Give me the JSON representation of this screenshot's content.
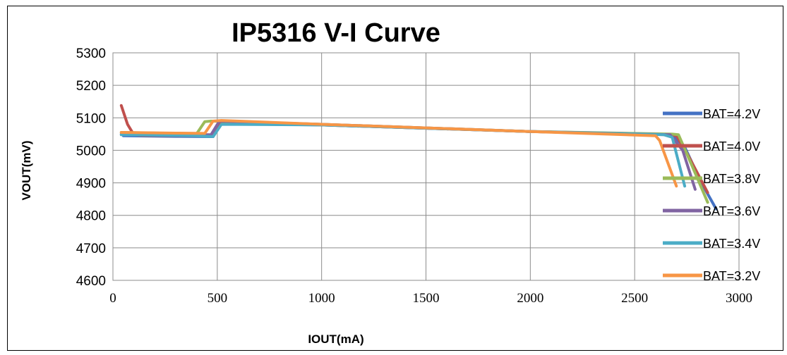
{
  "chart_data": {
    "type": "line",
    "title": "IP5316   V-I Curve",
    "xlabel": "IOUT(mA)",
    "ylabel": "VOUT(mV)",
    "xlim": [
      0,
      3000
    ],
    "ylim": [
      4600,
      5300
    ],
    "xticks": [
      0,
      500,
      1000,
      1500,
      2000,
      2500,
      3000
    ],
    "yticks": [
      4600,
      4700,
      4800,
      4900,
      5000,
      5100,
      5200,
      5300
    ],
    "grid": true,
    "legend_position": "right",
    "series": [
      {
        "name": "BAT=4.2V",
        "color": "#4472C4",
        "points": [
          [
            50,
            5045
          ],
          [
            300,
            5043
          ],
          [
            480,
            5042
          ],
          [
            520,
            5082
          ],
          [
            1000,
            5078
          ],
          [
            2000,
            5058
          ],
          [
            2600,
            5050
          ],
          [
            2680,
            5048
          ],
          [
            2740,
            5010
          ],
          [
            2820,
            4900
          ],
          [
            2890,
            4820
          ]
        ]
      },
      {
        "name": "BAT=4.0V",
        "color": "#C0504D",
        "points": [
          [
            40,
            5138
          ],
          [
            70,
            5080
          ],
          [
            100,
            5048
          ],
          [
            140,
            5046
          ],
          [
            400,
            5045
          ],
          [
            480,
            5046
          ],
          [
            520,
            5085
          ],
          [
            1000,
            5078
          ],
          [
            2000,
            5058
          ],
          [
            2650,
            5048
          ],
          [
            2700,
            5045
          ],
          [
            2760,
            4980
          ],
          [
            2850,
            4870
          ]
        ]
      },
      {
        "name": "BAT=3.8V",
        "color": "#9BBB59",
        "points": [
          [
            40,
            5055
          ],
          [
            300,
            5052
          ],
          [
            400,
            5050
          ],
          [
            440,
            5088
          ],
          [
            470,
            5090
          ],
          [
            1000,
            5080
          ],
          [
            2000,
            5058
          ],
          [
            2680,
            5050
          ],
          [
            2710,
            5048
          ],
          [
            2770,
            4960
          ],
          [
            2850,
            4840
          ]
        ]
      },
      {
        "name": "BAT=3.6V",
        "color": "#8064A2",
        "points": [
          [
            40,
            5050
          ],
          [
            300,
            5048
          ],
          [
            470,
            5048
          ],
          [
            510,
            5090
          ],
          [
            1000,
            5080
          ],
          [
            2000,
            5058
          ],
          [
            2670,
            5048
          ],
          [
            2730,
            5000
          ],
          [
            2790,
            4880
          ]
        ]
      },
      {
        "name": "BAT=3.4V",
        "color": "#4BACC6",
        "points": [
          [
            40,
            5048
          ],
          [
            300,
            5046
          ],
          [
            400,
            5045
          ],
          [
            480,
            5042
          ],
          [
            520,
            5080
          ],
          [
            1000,
            5078
          ],
          [
            2000,
            5058
          ],
          [
            2640,
            5048
          ],
          [
            2680,
            5040
          ],
          [
            2740,
            4890
          ]
        ]
      },
      {
        "name": "BAT=3.2V",
        "color": "#F79646",
        "points": [
          [
            40,
            5055
          ],
          [
            300,
            5053
          ],
          [
            440,
            5052
          ],
          [
            480,
            5090
          ],
          [
            520,
            5092
          ],
          [
            1000,
            5080
          ],
          [
            2000,
            5058
          ],
          [
            2600,
            5045
          ],
          [
            2620,
            5030
          ],
          [
            2700,
            4890
          ]
        ]
      }
    ]
  }
}
